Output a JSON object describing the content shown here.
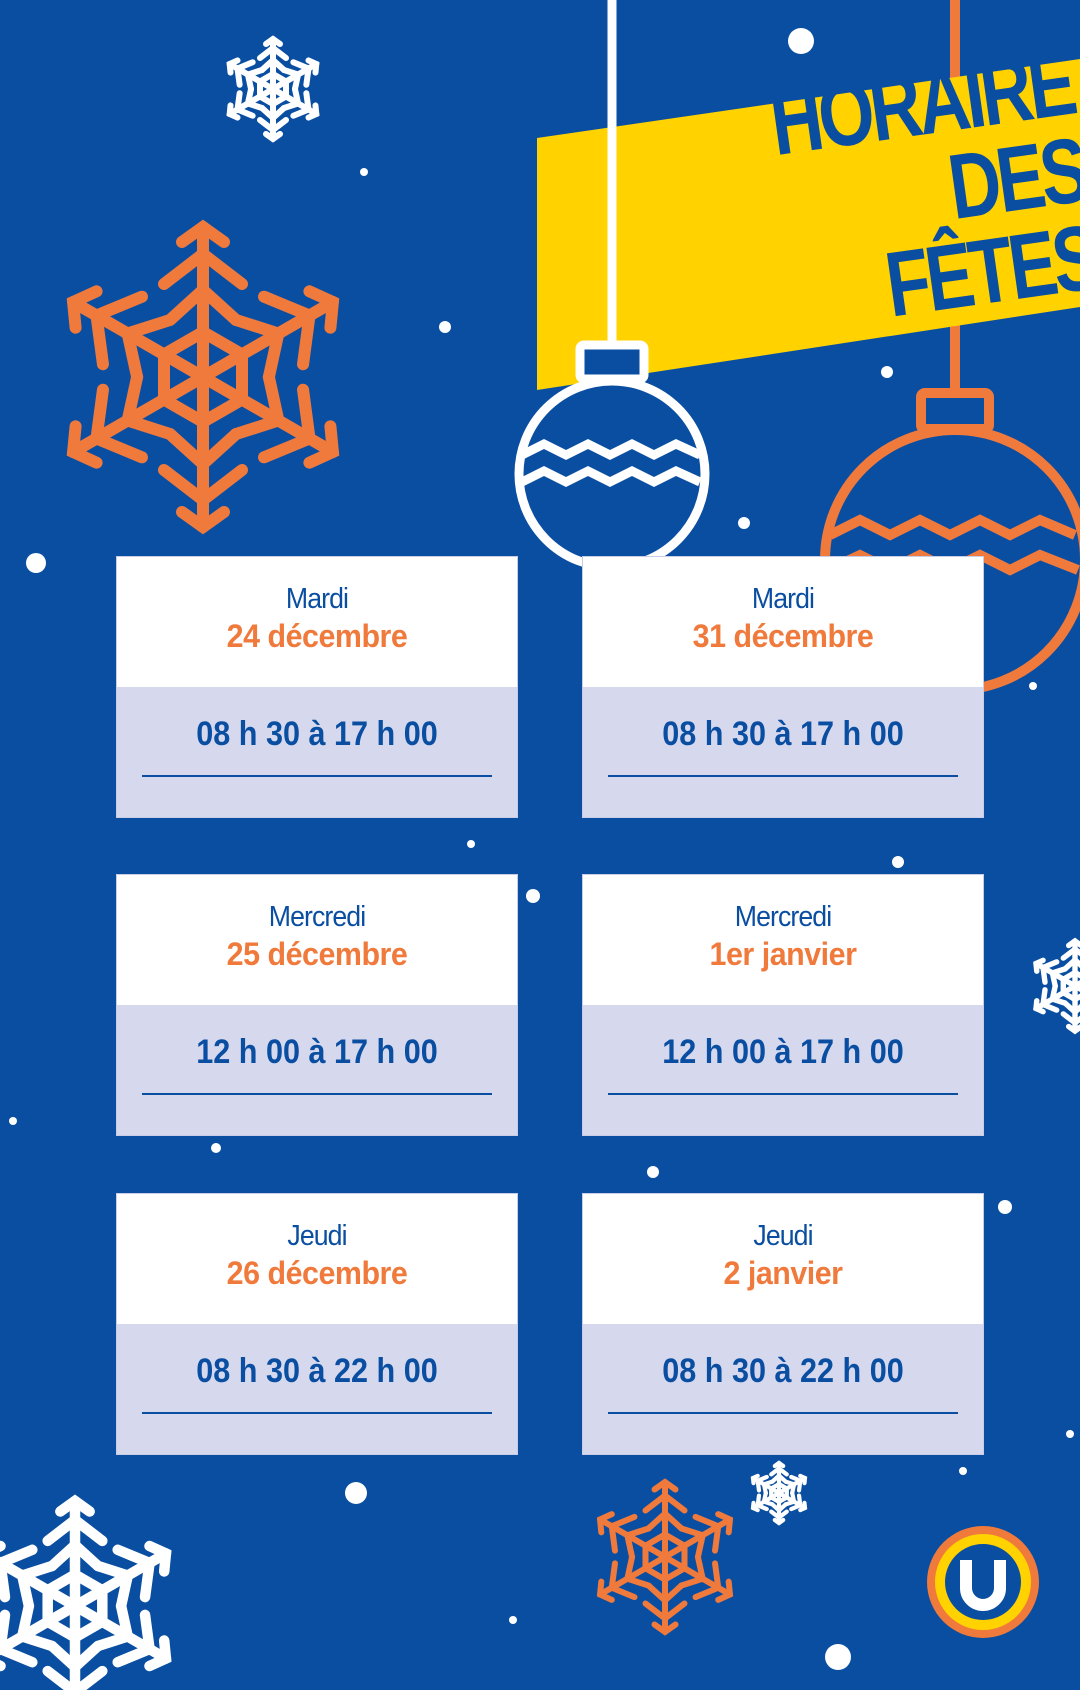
{
  "title": {
    "line1": "HORAIRE",
    "line2": "DES FÊTES"
  },
  "colors": {
    "background": "#0a4ea2",
    "accent_orange": "#f07a3c",
    "banner_yellow": "#ffd200",
    "card_lavender": "#d6d8ee"
  },
  "schedule": [
    {
      "day": "Mardi",
      "date": "24 décembre",
      "hours": "08 h 30 à 17 h 00"
    },
    {
      "day": "Mardi",
      "date": "31 décembre",
      "hours": "08 h 30 à 17 h 00"
    },
    {
      "day": "Mercredi",
      "date": "25 décembre",
      "hours": "12 h 00 à 17 h 00"
    },
    {
      "day": "Mercredi",
      "date": "1er janvier",
      "hours": "12 h 00 à 17 h 00"
    },
    {
      "day": "Jeudi",
      "date": "26 décembre",
      "hours": "08 h 30 à 22 h 00"
    },
    {
      "day": "Jeudi",
      "date": "2 janvier",
      "hours": "08 h 30 à 22 h 00"
    }
  ],
  "logo": {
    "letter": "U"
  },
  "icons": [
    "snowflake-icon",
    "ornament-icon",
    "logo-icon"
  ]
}
